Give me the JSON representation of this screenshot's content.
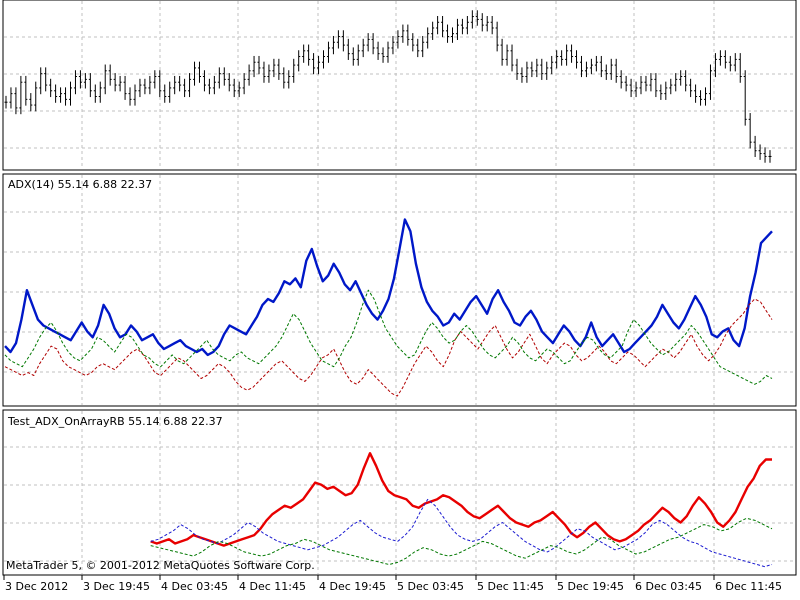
{
  "window": {
    "app": "MetaTrader 5",
    "copyright": "MetaTrader 5, © 2001-2012 MetaQuotes Software Corp."
  },
  "chart_data": [
    {
      "type": "line",
      "title": "",
      "note": "main price pane (candles/bars)",
      "series": [
        {
          "values": [
            120,
            123,
            118,
            127,
            121,
            119,
            125,
            130,
            126,
            124,
            122,
            123,
            121,
            125,
            129,
            127,
            128,
            124,
            122,
            125,
            131,
            128,
            126,
            127,
            123,
            121,
            124,
            126,
            125,
            127,
            129,
            124,
            122,
            125,
            127,
            126,
            124,
            128,
            132,
            129,
            126,
            125,
            127,
            130,
            128,
            126,
            124,
            125,
            128,
            131,
            134,
            132,
            129,
            131,
            133,
            130,
            127,
            129,
            133,
            136,
            138,
            135,
            132,
            134,
            136,
            139,
            141,
            143,
            140,
            137,
            135,
            138,
            140,
            142,
            139,
            137,
            136,
            139,
            141,
            143,
            145,
            142,
            140,
            138,
            141,
            144,
            146,
            148,
            145,
            143,
            144,
            147,
            146,
            148,
            150,
            149,
            147,
            148,
            146,
            140,
            135,
            138,
            133,
            130,
            129,
            132,
            131,
            133,
            130,
            132,
            134,
            136,
            135,
            138,
            136,
            134,
            131,
            132,
            133,
            134,
            131,
            130,
            133,
            129,
            127,
            126,
            124,
            125,
            127,
            126,
            128,
            124,
            123,
            125,
            126,
            128,
            129,
            126,
            124,
            122,
            121,
            123,
            131,
            135,
            136,
            134,
            133,
            135,
            129,
            114,
            106,
            103,
            102,
            101,
            101
          ]
        }
      ],
      "x_labels": [
        "3 Dec 2012",
        "3 Dec 19:45",
        "4 Dec 03:45",
        "4 Dec 11:45",
        "4 Dec 19:45",
        "5 Dec 03:45",
        "5 Dec 11:45",
        "5 Dec 19:45",
        "6 Dec 03:45",
        "6 Dec 11:45"
      ],
      "grid": true
    },
    {
      "type": "line",
      "title": "ADX(14) 55.14 6.88 22.37",
      "series": [
        {
          "color": "#0018c8",
          "values": [
            19,
            17,
            20,
            28,
            38,
            33,
            28,
            26,
            25,
            24,
            23,
            22,
            21,
            24,
            27,
            24,
            22,
            26,
            33,
            30,
            25,
            22,
            23,
            26,
            24,
            21,
            22,
            23,
            20,
            18,
            19,
            20,
            21,
            19,
            18,
            17,
            18,
            16,
            17,
            19,
            23,
            26,
            25,
            24,
            23,
            26,
            29,
            33,
            35,
            34,
            37,
            41,
            40,
            42,
            39,
            48,
            52,
            46,
            41,
            43,
            47,
            44,
            40,
            38,
            41,
            37,
            33,
            30,
            28,
            31,
            35,
            42,
            52,
            62,
            58,
            47,
            39,
            34,
            31,
            29,
            26,
            27,
            30,
            28,
            31,
            34,
            36,
            33,
            30,
            35,
            38,
            34,
            31,
            27,
            26,
            29,
            31,
            28,
            24,
            22,
            20,
            23,
            26,
            24,
            21,
            19,
            22,
            27,
            22,
            19,
            21,
            23,
            20,
            17,
            18,
            20,
            22,
            24,
            26,
            29,
            33,
            30,
            27,
            25,
            28,
            32,
            36,
            33,
            29,
            23,
            22,
            24,
            25,
            21,
            19,
            25,
            36,
            44,
            54,
            56,
            58
          ]
        },
        {
          "color": "#b00000",
          "values": [
            12,
            11,
            10,
            9,
            10,
            9,
            13,
            16,
            19,
            18,
            14,
            12,
            11,
            10,
            9,
            10,
            12,
            13,
            12,
            11,
            13,
            15,
            17,
            18,
            16,
            13,
            10,
            9,
            11,
            13,
            15,
            14,
            12,
            10,
            8,
            9,
            11,
            13,
            12,
            10,
            7,
            5,
            4,
            5,
            7,
            9,
            11,
            13,
            14,
            12,
            10,
            8,
            7,
            9,
            12,
            15,
            16,
            18,
            14,
            10,
            7,
            6,
            8,
            11,
            9,
            7,
            5,
            3,
            2,
            5,
            9,
            13,
            16,
            19,
            17,
            14,
            12,
            16,
            21,
            24,
            22,
            20,
            18,
            21,
            24,
            26,
            22,
            18,
            15,
            17,
            20,
            23,
            19,
            15,
            13,
            16,
            18,
            20,
            19,
            16,
            14,
            15,
            17,
            19,
            17,
            14,
            13,
            15,
            17,
            16,
            14,
            12,
            14,
            16,
            18,
            17,
            15,
            17,
            20,
            23,
            19,
            16,
            14,
            16,
            19,
            23,
            26,
            28,
            30,
            33,
            35,
            34,
            31,
            28
          ]
        },
        {
          "color": "#007800",
          "values": [
            16,
            14,
            13,
            12,
            15,
            18,
            22,
            25,
            27,
            24,
            20,
            17,
            15,
            14,
            16,
            18,
            22,
            21,
            19,
            17,
            20,
            23,
            22,
            19,
            16,
            15,
            13,
            12,
            14,
            16,
            14,
            13,
            15,
            17,
            19,
            21,
            18,
            16,
            15,
            14,
            16,
            17,
            15,
            14,
            13,
            15,
            17,
            19,
            22,
            26,
            30,
            28,
            24,
            20,
            17,
            14,
            13,
            12,
            15,
            19,
            22,
            27,
            33,
            38,
            35,
            30,
            25,
            22,
            19,
            17,
            15,
            16,
            20,
            24,
            27,
            25,
            22,
            20,
            21,
            24,
            26,
            24,
            21,
            18,
            16,
            15,
            17,
            19,
            22,
            20,
            17,
            15,
            14,
            16,
            18,
            17,
            15,
            13,
            14,
            17,
            20,
            22,
            21,
            18,
            16,
            15,
            17,
            19,
            24,
            28,
            26,
            23,
            20,
            18,
            16,
            17,
            19,
            21,
            23,
            26,
            24,
            21,
            18,
            15,
            12,
            11,
            10,
            9,
            8,
            7,
            6,
            7,
            9,
            8
          ]
        }
      ],
      "grid": true
    },
    {
      "type": "line",
      "title": "Test_ADX_OnArrayRB 55.14 6.88 22.37",
      "series": [
        {
          "color": "#e80000",
          "values": [
            16,
            15,
            16,
            17,
            15,
            16,
            17,
            19,
            18,
            17,
            16,
            15,
            14,
            15,
            16,
            17,
            18,
            19,
            22,
            26,
            29,
            31,
            33,
            32,
            34,
            36,
            40,
            44,
            43,
            41,
            42,
            40,
            38,
            39,
            43,
            51,
            58,
            52,
            45,
            40,
            38,
            37,
            36,
            33,
            32,
            34,
            35,
            36,
            38,
            37,
            35,
            33,
            30,
            28,
            27,
            29,
            31,
            33,
            30,
            27,
            25,
            24,
            23,
            25,
            26,
            28,
            30,
            27,
            24,
            20,
            18,
            20,
            23,
            25,
            22,
            19,
            17,
            16,
            17,
            19,
            21,
            24,
            26,
            29,
            32,
            30,
            27,
            25,
            28,
            33,
            37,
            34,
            30,
            25,
            23,
            26,
            30,
            36,
            42,
            46,
            52,
            55,
            55
          ]
        },
        {
          "color": "#1a1ad0",
          "values": [
            16,
            17,
            19,
            21,
            24,
            22,
            19,
            17,
            16,
            15,
            17,
            19,
            22,
            25,
            23,
            20,
            18,
            16,
            15,
            14,
            13,
            12,
            13,
            14,
            16,
            18,
            21,
            24,
            26,
            23,
            20,
            18,
            17,
            16,
            19,
            23,
            30,
            36,
            33,
            28,
            23,
            19,
            17,
            16,
            17,
            20,
            23,
            25,
            22,
            19,
            16,
            14,
            12,
            11,
            13,
            16,
            19,
            22,
            21,
            18,
            16,
            14,
            12,
            13,
            15,
            17,
            20,
            24,
            26,
            24,
            21,
            18,
            16,
            15,
            13,
            11,
            10,
            9,
            8,
            7,
            6,
            5,
            4,
            5
          ]
        },
        {
          "color": "#007800",
          "values": [
            14,
            13,
            12,
            11,
            10,
            9,
            11,
            14,
            16,
            15,
            13,
            11,
            10,
            9,
            10,
            12,
            14,
            15,
            17,
            16,
            14,
            12,
            11,
            10,
            9,
            8,
            7,
            6,
            5,
            6,
            8,
            11,
            13,
            12,
            10,
            9,
            10,
            12,
            14,
            16,
            15,
            13,
            11,
            9,
            8,
            10,
            12,
            14,
            13,
            11,
            10,
            12,
            15,
            18,
            17,
            14,
            12,
            10,
            11,
            13,
            15,
            17,
            18,
            20,
            22,
            24,
            23,
            21,
            22,
            25,
            27,
            26,
            24,
            22
          ]
        }
      ],
      "grid": true
    }
  ]
}
